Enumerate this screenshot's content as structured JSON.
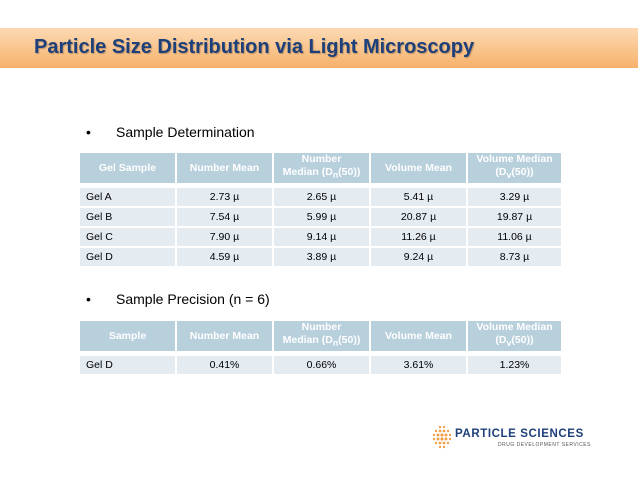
{
  "slide": {
    "title": "Particle Size Distribution via Light Microscopy"
  },
  "section1": {
    "bullet": "•",
    "heading": "Sample Determination",
    "headers": [
      {
        "text": "Gel Sample"
      },
      {
        "text": "Number Mean"
      },
      {
        "pre": "Number",
        "line2": "Median (D",
        "sub": "n",
        "post": "(50))"
      },
      {
        "text": "Volume Mean"
      },
      {
        "pre": "Volume Median",
        "line2": "(D",
        "sub": "v",
        "post": "(50))"
      }
    ],
    "rows": [
      [
        "Gel A",
        "2.73 µ",
        "2.65 µ",
        "5.41 µ",
        "3.29 µ"
      ],
      [
        "Gel B",
        "7.54 µ",
        "5.99 µ",
        "20.87 µ",
        "19.87 µ"
      ],
      [
        "Gel C",
        "7.90 µ",
        "9.14 µ",
        "11.26 µ",
        "11.06 µ"
      ],
      [
        "Gel D",
        "4.59 µ",
        "3.89 µ",
        "9.24 µ",
        "8.73 µ"
      ]
    ]
  },
  "section2": {
    "bullet": "•",
    "heading": "Sample Precision  (n = 6)",
    "headers": [
      {
        "text": "Sample"
      },
      {
        "text": "Number Mean"
      },
      {
        "pre": "Number",
        "line2": "Median (D",
        "sub": "n",
        "post": "(50))"
      },
      {
        "text": "Volume Mean"
      },
      {
        "pre": "Volume Median",
        "line2": "(D",
        "sub": "v",
        "post": "(50))"
      }
    ],
    "rows": [
      [
        "Gel D",
        "0.41%",
        "0.66%",
        "3.61%",
        "1.23%"
      ]
    ]
  },
  "logo": {
    "name": "PARTICLE SCIENCES",
    "tagline": "DRUG DEVELOPMENT SERVICES",
    "color": "#1d3f7a",
    "dot_color": "#f0a04b"
  }
}
